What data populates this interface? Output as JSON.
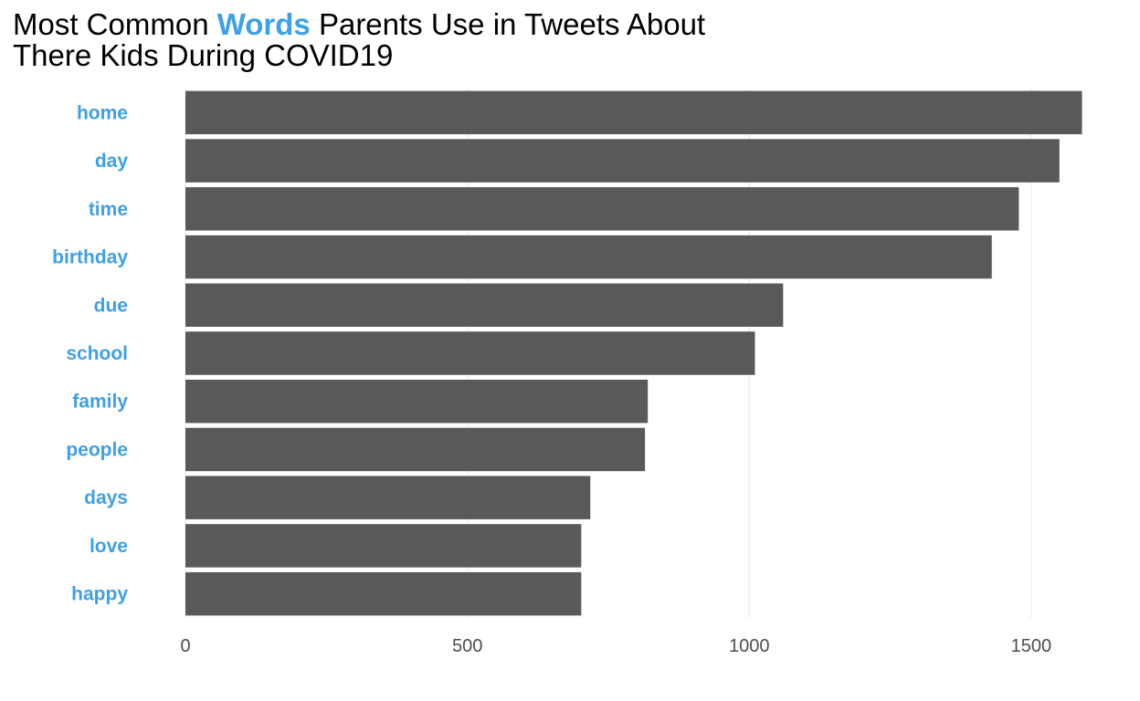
{
  "title": {
    "part1": "Most Common ",
    "highlight": "Words",
    "part2": " Parents Use in Tweets About",
    "line2": "There Kids During COVID19"
  },
  "colors": {
    "accent": "#3ea0e6",
    "bar": "#595959",
    "grid": "#ebebeb",
    "tick_text": "#4d4d4d"
  },
  "chart_data": {
    "type": "bar",
    "orientation": "horizontal",
    "title": "Most Common Words Parents Use in Tweets About There Kids During COVID19",
    "xlabel": "",
    "ylabel": "",
    "categories": [
      "home",
      "day",
      "time",
      "birthday",
      "due",
      "school",
      "family",
      "people",
      "days",
      "love",
      "happy"
    ],
    "values": [
      1590,
      1550,
      1478,
      1430,
      1060,
      1010,
      820,
      815,
      718,
      702,
      702
    ],
    "xlim": [
      0,
      1620
    ],
    "xticks": [
      0,
      500,
      1000,
      1500
    ],
    "grid": "vertical"
  }
}
